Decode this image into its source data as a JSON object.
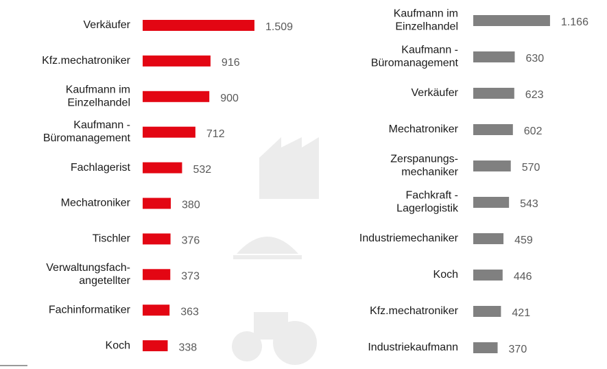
{
  "chart_data": [
    {
      "type": "bar",
      "orientation": "horizontal",
      "color": "#e30613",
      "categories": [
        "Verkäufer",
        "Kfz.mechatroniker",
        "Kaufmann im\nEinzelhandel",
        "Kaufmann -\nBüromanagement",
        "Fachlagerist",
        "Mechatroniker",
        "Tischler",
        "Verwaltungsfach-\nangetellter",
        "Fachinformatiker",
        "Koch"
      ],
      "values": [
        1509,
        916,
        900,
        712,
        532,
        380,
        376,
        373,
        363,
        338
      ],
      "value_labels": [
        "1.509",
        "916",
        "900",
        "712",
        "532",
        "380",
        "376",
        "373",
        "363",
        "338"
      ]
    },
    {
      "type": "bar",
      "orientation": "horizontal",
      "color": "#808080",
      "categories": [
        "Kaufmann im\nEinzelhandel",
        "Kaufmann -\nBüromanagement",
        "Verkäufer",
        "Mechatroniker",
        "Zerspanungs-\nmechaniker",
        "Fachkraft -\nLagerlogistik",
        "Industriemechaniker",
        "Koch",
        "Kfz.mechatroniker",
        "Industriekaufmann"
      ],
      "values": [
        1166,
        630,
        623,
        602,
        570,
        543,
        459,
        446,
        421,
        370
      ],
      "value_labels": [
        "1.166",
        "630",
        "623",
        "602",
        "570",
        "543",
        "459",
        "446",
        "421",
        "370"
      ]
    }
  ]
}
